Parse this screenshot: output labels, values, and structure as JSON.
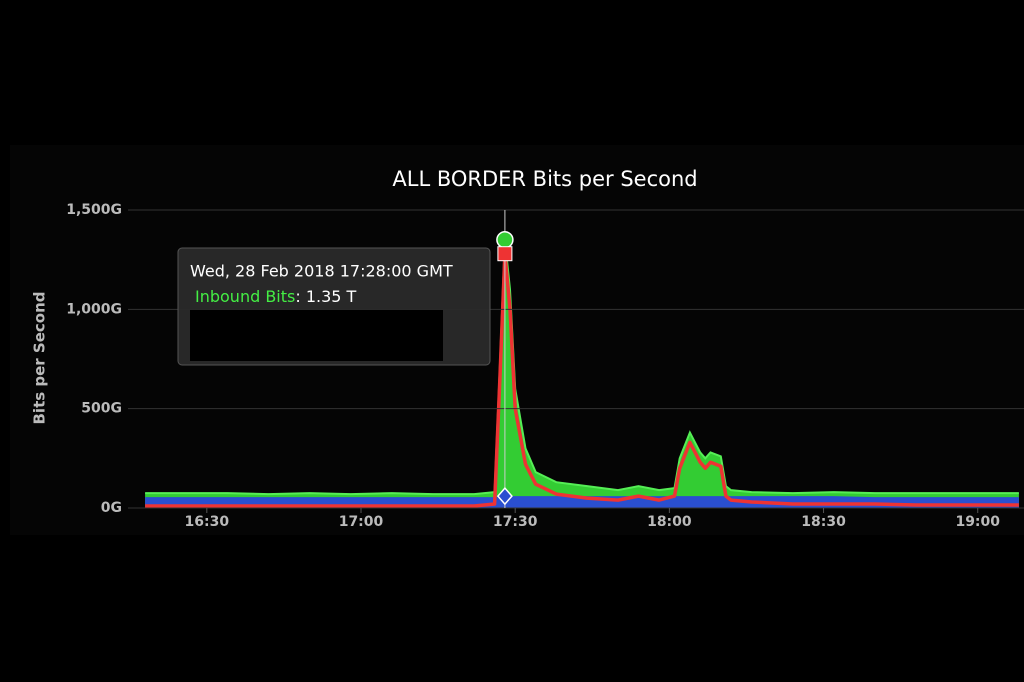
{
  "chart_data": {
    "type": "area",
    "title": "ALL BORDER Bits per Second",
    "y_label": "Bits per Second",
    "x": [
      "16:18",
      "16:26",
      "16:34",
      "16:42",
      "16:50",
      "16:58",
      "17:06",
      "17:14",
      "17:22",
      "17:26",
      "17:27",
      "17:28",
      "17:29",
      "17:30",
      "17:32",
      "17:34",
      "17:38",
      "17:44",
      "17:50",
      "17:54",
      "17:58",
      "18:01",
      "18:02",
      "18:04",
      "18:06",
      "18:07",
      "18:08",
      "18:10",
      "18:11",
      "18:12",
      "18:16",
      "18:24",
      "18:32",
      "18:40",
      "18:48",
      "18:56",
      "19:04",
      "19:08"
    ],
    "xlim": [
      "16:17",
      "19:09"
    ],
    "xticks": [
      "16:30",
      "17:00",
      "17:30",
      "18:00",
      "18:30",
      "19:00"
    ],
    "ylim": [
      0,
      1500
    ],
    "yticks": [
      {
        "value": 0,
        "label": "0G"
      },
      {
        "value": 500,
        "label": "500G"
      },
      {
        "value": 1000,
        "label": "1,000G"
      },
      {
        "value": 1500,
        "label": "1,500G"
      }
    ],
    "grid": true,
    "series": [
      {
        "name": "Inbound Bits",
        "color": "#33cc33",
        "style": "area",
        "values": [
          75,
          75,
          75,
          70,
          75,
          70,
          75,
          70,
          70,
          80,
          700,
          1350,
          1100,
          600,
          300,
          180,
          130,
          110,
          90,
          110,
          90,
          100,
          250,
          380,
          280,
          250,
          280,
          260,
          110,
          90,
          80,
          75,
          80,
          75,
          75,
          75,
          75,
          75
        ]
      },
      {
        "color": "#2a4fd0",
        "style": "area",
        "values": [
          55,
          55,
          55,
          55,
          55,
          55,
          55,
          55,
          55,
          55,
          60,
          60,
          60,
          60,
          60,
          60,
          60,
          60,
          60,
          60,
          60,
          60,
          60,
          60,
          60,
          60,
          60,
          60,
          60,
          60,
          60,
          60,
          60,
          55,
          55,
          55,
          55,
          55
        ]
      },
      {
        "color": "#ee3333",
        "style": "line",
        "values": [
          10,
          10,
          10,
          10,
          10,
          10,
          10,
          10,
          10,
          20,
          640,
          1280,
          1000,
          500,
          220,
          120,
          70,
          50,
          40,
          60,
          40,
          60,
          200,
          330,
          230,
          200,
          230,
          210,
          60,
          40,
          30,
          20,
          20,
          20,
          15,
          15,
          15,
          15
        ]
      }
    ],
    "tooltip": {
      "index": 11,
      "date": "Wed, 28 Feb 2018 17:28:00 GMT",
      "series_label": "Inbound Bits",
      "reading": ": 1.35 T"
    }
  }
}
